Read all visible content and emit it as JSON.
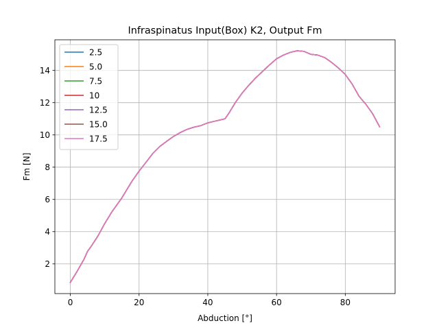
{
  "chart_data": {
    "type": "line",
    "title": "Infraspinatus Input(Box) K2, Output Fm",
    "xlabel": "Abduction [°]",
    "ylabel": "Fm [N]",
    "xlim": [
      -4.5,
      94.5
    ],
    "ylim": [
      0.16,
      15.9
    ],
    "x_ticks": [
      0,
      20,
      40,
      60,
      80
    ],
    "y_ticks": [
      2,
      4,
      6,
      8,
      10,
      12,
      14
    ],
    "x_tick_labels": [
      "0",
      "20",
      "40",
      "60",
      "80"
    ],
    "y_tick_labels": [
      "2",
      "4",
      "6",
      "8",
      "10",
      "12",
      "14"
    ],
    "grid": true,
    "legend_position": "upper-left",
    "x": [
      0,
      2,
      4,
      5,
      6,
      8,
      10,
      12,
      14,
      15,
      16,
      18,
      20,
      22,
      24,
      26,
      28,
      30,
      32,
      34,
      36,
      38,
      40,
      42,
      44,
      45,
      46,
      48,
      50,
      52,
      54,
      56,
      58,
      60,
      62,
      64,
      66,
      68,
      70,
      72,
      74,
      76,
      78,
      80,
      82,
      84,
      86,
      88,
      90
    ],
    "series": [
      {
        "name": "2.5",
        "color": "#1f77b4",
        "values": [
          0.85,
          1.55,
          2.3,
          2.78,
          3.07,
          3.72,
          4.5,
          5.2,
          5.8,
          6.1,
          6.45,
          7.15,
          7.75,
          8.3,
          8.85,
          9.28,
          9.6,
          9.9,
          10.15,
          10.35,
          10.48,
          10.58,
          10.75,
          10.85,
          10.95,
          11.0,
          11.3,
          12.0,
          12.6,
          13.1,
          13.55,
          13.95,
          14.35,
          14.72,
          14.95,
          15.12,
          15.22,
          15.18,
          15.0,
          14.95,
          14.8,
          14.5,
          14.15,
          13.75,
          13.15,
          12.4,
          11.9,
          11.3,
          10.5
        ]
      },
      {
        "name": "5.0",
        "color": "#ff7f0e",
        "values": [
          0.85,
          1.55,
          2.3,
          2.78,
          3.07,
          3.72,
          4.5,
          5.2,
          5.8,
          6.1,
          6.45,
          7.15,
          7.75,
          8.3,
          8.85,
          9.28,
          9.6,
          9.9,
          10.15,
          10.35,
          10.48,
          10.58,
          10.75,
          10.85,
          10.95,
          11.0,
          11.3,
          12.0,
          12.6,
          13.1,
          13.55,
          13.95,
          14.35,
          14.72,
          14.95,
          15.12,
          15.22,
          15.18,
          15.0,
          14.95,
          14.8,
          14.5,
          14.15,
          13.75,
          13.15,
          12.4,
          11.9,
          11.3,
          10.5
        ]
      },
      {
        "name": "7.5",
        "color": "#2ca02c",
        "values": [
          0.85,
          1.55,
          2.3,
          2.78,
          3.07,
          3.72,
          4.5,
          5.2,
          5.8,
          6.1,
          6.45,
          7.15,
          7.75,
          8.3,
          8.85,
          9.28,
          9.6,
          9.9,
          10.15,
          10.35,
          10.48,
          10.58,
          10.75,
          10.85,
          10.95,
          11.0,
          11.3,
          12.0,
          12.6,
          13.1,
          13.55,
          13.95,
          14.35,
          14.72,
          14.95,
          15.12,
          15.22,
          15.18,
          15.0,
          14.95,
          14.8,
          14.5,
          14.15,
          13.75,
          13.15,
          12.4,
          11.9,
          11.3,
          10.5
        ]
      },
      {
        "name": "10",
        "color": "#d62728",
        "values": [
          0.85,
          1.55,
          2.3,
          2.78,
          3.07,
          3.72,
          4.5,
          5.2,
          5.8,
          6.1,
          6.45,
          7.15,
          7.75,
          8.3,
          8.85,
          9.28,
          9.6,
          9.9,
          10.15,
          10.35,
          10.48,
          10.58,
          10.75,
          10.85,
          10.95,
          11.0,
          11.3,
          12.0,
          12.6,
          13.1,
          13.55,
          13.95,
          14.35,
          14.72,
          14.95,
          15.12,
          15.22,
          15.18,
          15.0,
          14.95,
          14.8,
          14.5,
          14.15,
          13.75,
          13.15,
          12.4,
          11.9,
          11.3,
          10.5
        ]
      },
      {
        "name": "12.5",
        "color": "#9467bd",
        "values": [
          0.85,
          1.55,
          2.3,
          2.78,
          3.07,
          3.72,
          4.5,
          5.2,
          5.8,
          6.1,
          6.45,
          7.15,
          7.75,
          8.3,
          8.85,
          9.28,
          9.6,
          9.9,
          10.15,
          10.35,
          10.48,
          10.58,
          10.75,
          10.85,
          10.95,
          11.0,
          11.3,
          12.0,
          12.6,
          13.1,
          13.55,
          13.95,
          14.35,
          14.72,
          14.95,
          15.12,
          15.22,
          15.18,
          15.0,
          14.95,
          14.8,
          14.5,
          14.15,
          13.75,
          13.15,
          12.4,
          11.9,
          11.3,
          10.5
        ]
      },
      {
        "name": "15.0",
        "color": "#8c564b",
        "values": [
          0.85,
          1.55,
          2.3,
          2.78,
          3.07,
          3.72,
          4.5,
          5.2,
          5.8,
          6.1,
          6.45,
          7.15,
          7.75,
          8.3,
          8.85,
          9.28,
          9.6,
          9.9,
          10.15,
          10.35,
          10.48,
          10.58,
          10.75,
          10.85,
          10.95,
          11.0,
          11.3,
          12.0,
          12.6,
          13.1,
          13.55,
          13.95,
          14.35,
          14.72,
          14.95,
          15.12,
          15.22,
          15.18,
          15.0,
          14.95,
          14.8,
          14.5,
          14.15,
          13.75,
          13.15,
          12.4,
          11.9,
          11.3,
          10.5
        ]
      },
      {
        "name": "17.5",
        "color": "#e377c2",
        "values": [
          0.85,
          1.55,
          2.3,
          2.78,
          3.07,
          3.72,
          4.5,
          5.2,
          5.8,
          6.1,
          6.45,
          7.15,
          7.75,
          8.3,
          8.85,
          9.28,
          9.6,
          9.9,
          10.15,
          10.35,
          10.48,
          10.58,
          10.75,
          10.85,
          10.95,
          11.0,
          11.3,
          12.0,
          12.6,
          13.1,
          13.55,
          13.95,
          14.35,
          14.72,
          14.95,
          15.12,
          15.22,
          15.18,
          15.0,
          14.95,
          14.8,
          14.5,
          14.15,
          13.75,
          13.15,
          12.4,
          11.9,
          11.3,
          10.5
        ]
      }
    ]
  }
}
